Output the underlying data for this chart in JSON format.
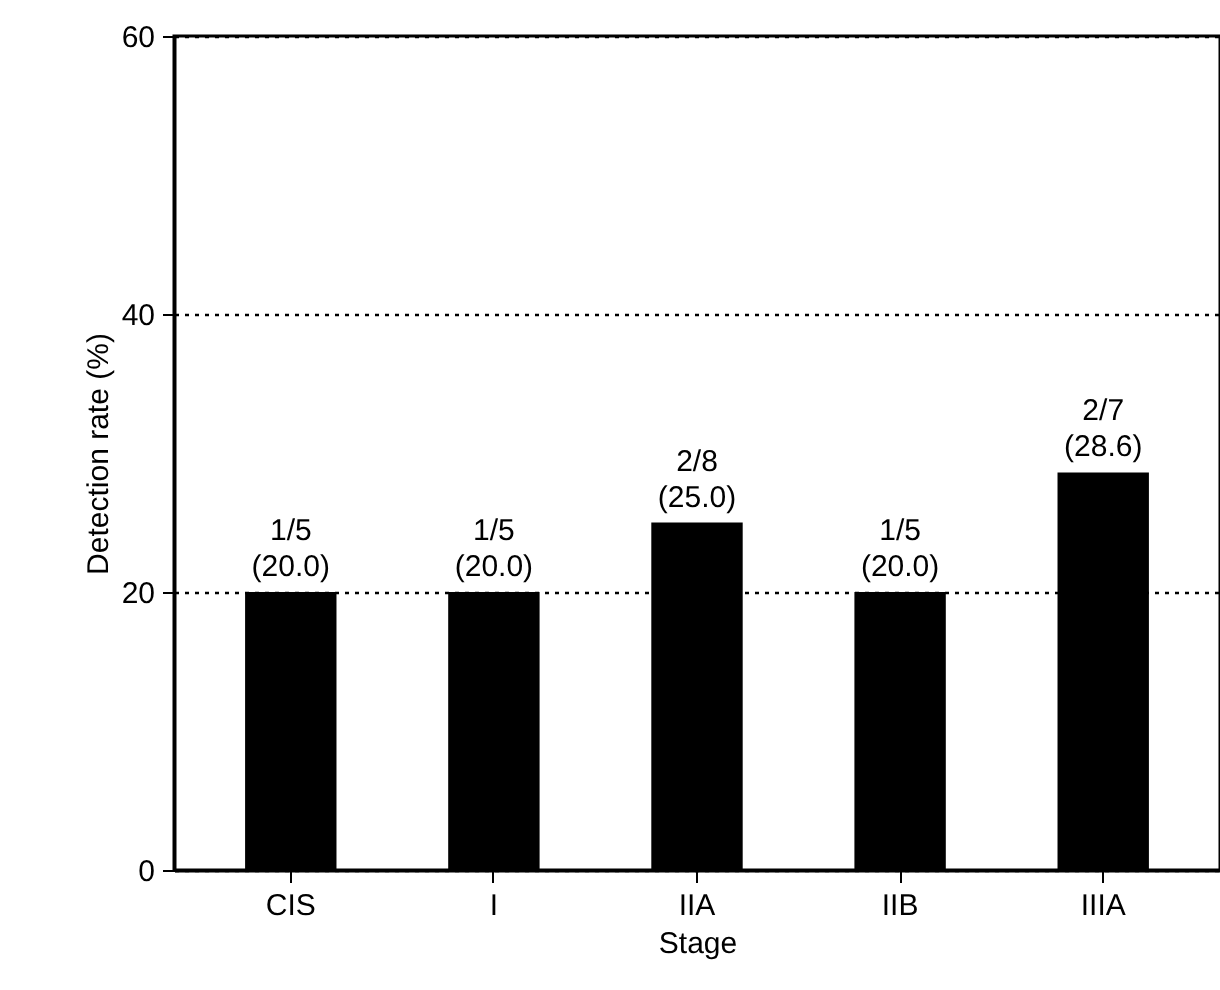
{
  "chart_data": {
    "type": "bar",
    "xlabel": "Stage",
    "ylabel": "Detection rate (%)",
    "categories": [
      "CIS",
      "I",
      "IIA",
      "IIB",
      "IIIA"
    ],
    "values": [
      20.0,
      20.0,
      25.0,
      20.0,
      28.6
    ],
    "color": "#000000",
    "value_labels": [
      "1/5\n(20.0)",
      "1/5\n(20.0)",
      "2/8\n(25.0)",
      "1/5\n(20.0)",
      "2/7\n(28.6)"
    ],
    "ylim": [
      0,
      60
    ],
    "yticks": [
      0,
      20,
      40,
      60
    ],
    "grid": "y",
    "line_style": "dotted"
  }
}
